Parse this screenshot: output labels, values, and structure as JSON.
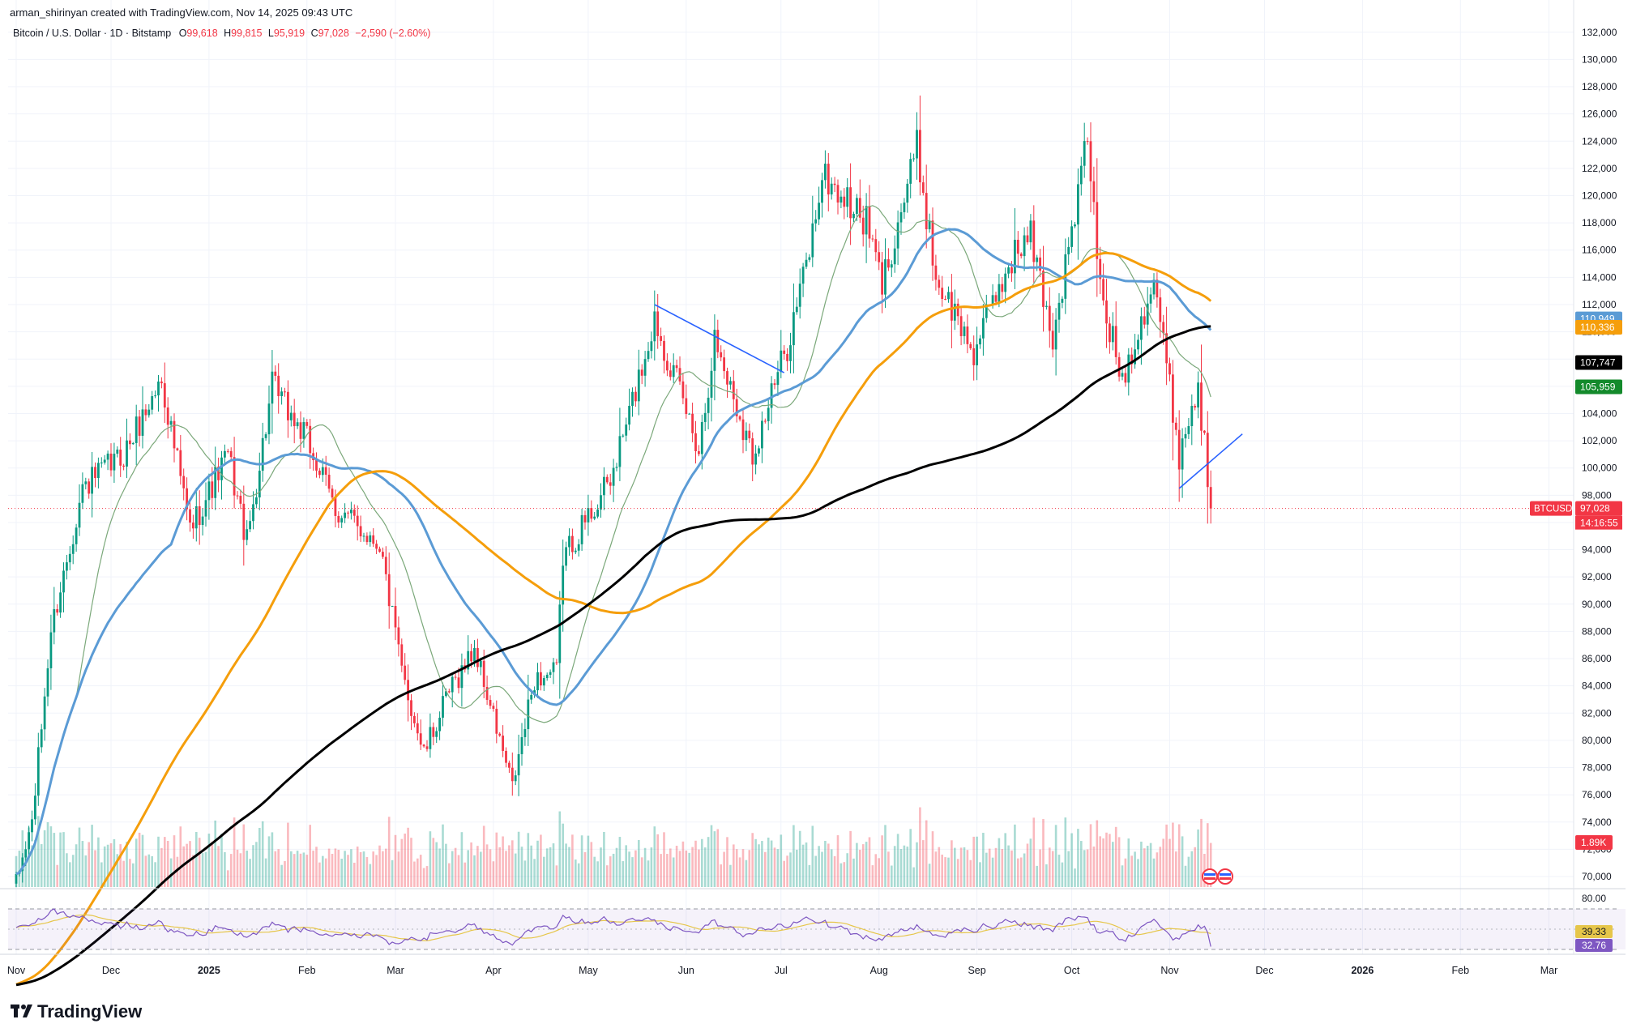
{
  "header": {
    "created_by": "arman_shirinyan created with TradingView.com, Nov 14, 2025 09:43 UTC",
    "symbol_line": "Bitcoin / U.S. Dollar · 1D · Bitstamp",
    "open_label": "O",
    "open_value": "99,618",
    "high_label": "H",
    "high_value": "99,815",
    "low_label": "L",
    "low_value": "95,919",
    "close_label": "C",
    "close_value": "97,028",
    "change": "−2,590 (−2.60%)"
  },
  "logo": {
    "text": "TradingView"
  },
  "colors": {
    "up": "#089981",
    "down": "#f23645",
    "ma_fast": "#7ba87a",
    "ma_blue": "#5b9bd5",
    "ma_orange": "#f59e0b",
    "ma_black": "#000000",
    "rsi": "#7e57c2",
    "rsi_ma": "#e6c64a",
    "trendline": "#2962ff",
    "label_green": "#138a2b"
  },
  "chart_data": {
    "type": "candlestick",
    "symbol": "BTCUSD",
    "y_axis": {
      "range": [
        70000,
        132000
      ],
      "ticks": [
        "132,000",
        "130,000",
        "128,000",
        "126,000",
        "124,000",
        "122,000",
        "120,000",
        "118,000",
        "116,000",
        "114,000",
        "112,000",
        "110,000",
        "108,000",
        "106,000",
        "104,000",
        "102,000",
        "100,000",
        "98,000",
        "96,000",
        "94,000",
        "92,000",
        "90,000",
        "88,000",
        "86,000",
        "84,000",
        "82,000",
        "80,000",
        "78,000",
        "76,000",
        "74,000",
        "72,000",
        "70,000"
      ]
    },
    "x_axis": {
      "ticks": [
        "Nov",
        "Dec",
        "2025",
        "Feb",
        "Mar",
        "Apr",
        "May",
        "Jun",
        "Jul",
        "Aug",
        "Sep",
        "Oct",
        "Nov",
        "Dec",
        "2026",
        "Feb",
        "Mar"
      ]
    },
    "price_anchors": [
      [
        "2024-11-01",
        69500
      ],
      [
        "2024-11-06",
        74000
      ],
      [
        "2024-11-12",
        88000
      ],
      [
        "2024-11-22",
        98500
      ],
      [
        "2024-12-05",
        101000
      ],
      [
        "2024-12-17",
        106500
      ],
      [
        "2024-12-26",
        95500
      ],
      [
        "2025-01-07",
        101000
      ],
      [
        "2025-01-13",
        94500
      ],
      [
        "2025-01-21",
        106000
      ],
      [
        "2025-02-01",
        102000
      ],
      [
        "2025-02-10",
        97000
      ],
      [
        "2025-02-24",
        94500
      ],
      [
        "2025-03-03",
        85000
      ],
      [
        "2025-03-10",
        79000
      ],
      [
        "2025-03-18",
        83500
      ],
      [
        "2025-03-26",
        86800
      ],
      [
        "2025-04-07",
        76500
      ],
      [
        "2025-04-14",
        84500
      ],
      [
        "2025-04-21",
        85000
      ],
      [
        "2025-04-23",
        93500
      ],
      [
        "2025-05-08",
        99000
      ],
      [
        "2025-05-14",
        104000
      ],
      [
        "2025-05-22",
        111000
      ],
      [
        "2025-06-05",
        101500
      ],
      [
        "2025-06-10",
        109500
      ],
      [
        "2025-06-22",
        101000
      ],
      [
        "2025-07-03",
        109000
      ],
      [
        "2025-07-10",
        116000
      ],
      [
        "2025-07-14",
        121500
      ],
      [
        "2025-07-28",
        118000
      ],
      [
        "2025-08-02",
        113500
      ],
      [
        "2025-08-13",
        123500
      ],
      [
        "2025-08-19",
        114000
      ],
      [
        "2025-08-31",
        108500
      ],
      [
        "2025-09-12",
        115500
      ],
      [
        "2025-09-18",
        117000
      ],
      [
        "2025-09-25",
        109500
      ],
      [
        "2025-10-03",
        120000
      ],
      [
        "2025-10-06",
        124500
      ],
      [
        "2025-10-10",
        113000
      ],
      [
        "2025-10-17",
        106500
      ],
      [
        "2025-10-27",
        114000
      ],
      [
        "2025-11-04",
        101000
      ],
      [
        "2025-11-10",
        106000
      ],
      [
        "2025-11-14",
        97028
      ]
    ],
    "moving_averages": [
      {
        "color_key": "ma_fast",
        "period": 20
      },
      {
        "color_key": "ma_blue",
        "period": 50
      },
      {
        "color_key": "ma_orange",
        "period": 100
      },
      {
        "color_key": "ma_black",
        "period": 200
      }
    ],
    "trendlines": [
      {
        "from": [
          "2025-05-22",
          112000
        ],
        "to": [
          "2025-07-02",
          107000
        ]
      },
      {
        "from": [
          "2025-11-04",
          98500
        ],
        "to": [
          "2025-11-24",
          102500
        ]
      }
    ],
    "price_labels": [
      {
        "value": 110949,
        "text": "110,949",
        "color_key": "ma_blue"
      },
      {
        "value": 110336,
        "text": "110,336",
        "color_key": "ma_orange"
      },
      {
        "value": 107747,
        "text": "107,747",
        "color_key": "ma_black"
      },
      {
        "value": 105959,
        "text": "105,959",
        "color_key": "label_green"
      },
      {
        "value": 97028,
        "text": "97,028",
        "color_key": "down"
      }
    ],
    "last_price_tag": "BTCUSD",
    "countdown": "14:16:55",
    "volume_label": "1.89K",
    "rsi": {
      "ticks": [
        "80.00"
      ],
      "values": [
        {
          "value": 39.33,
          "text": "39.33",
          "color_key": "rsi_ma"
        },
        {
          "value": 32.76,
          "text": "32.76",
          "color_key": "rsi"
        }
      ]
    }
  }
}
